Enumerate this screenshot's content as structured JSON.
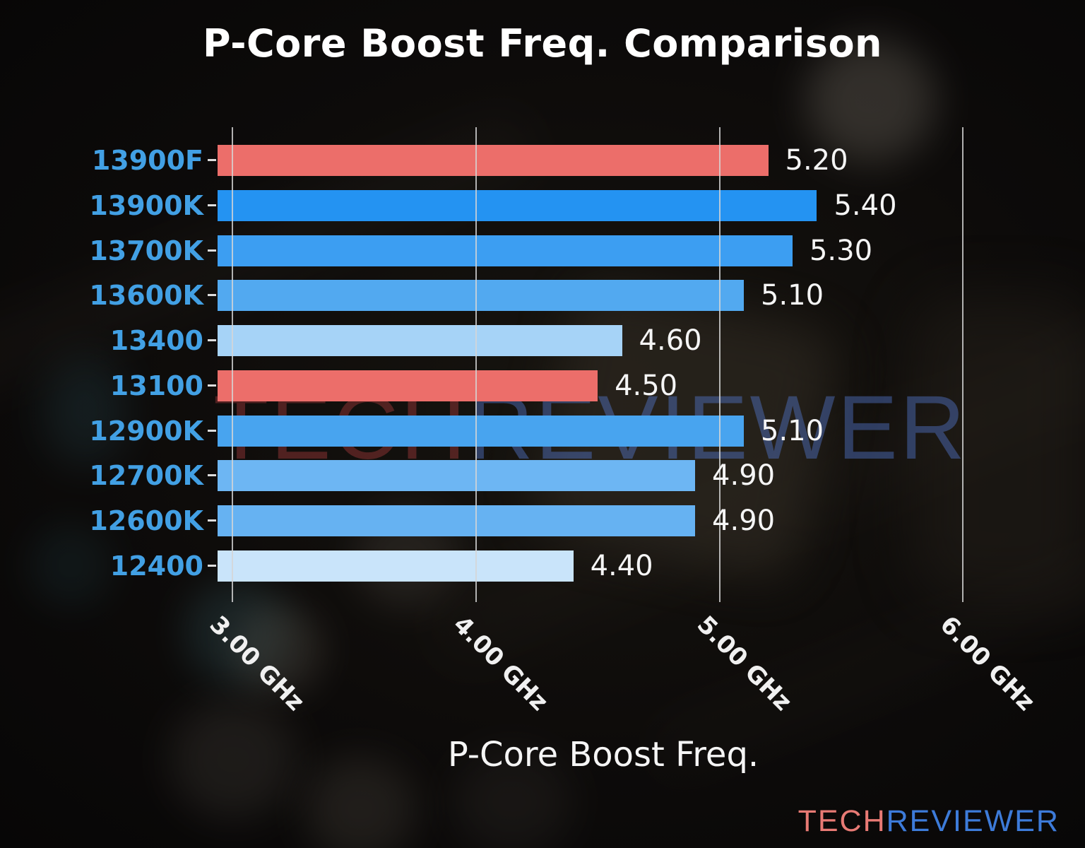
{
  "chart_data": {
    "type": "bar",
    "orientation": "horizontal",
    "title": "P-Core Boost Freq. Comparison",
    "xlabel": "P-Core Boost Freq.",
    "categories": [
      "13900F",
      "13900K",
      "13700K",
      "13600K",
      "13400",
      "13100",
      "12900K",
      "12700K",
      "12600K",
      "12400"
    ],
    "values": [
      5.2,
      5.4,
      5.3,
      5.1,
      4.6,
      4.5,
      5.1,
      4.9,
      4.9,
      4.4
    ],
    "value_labels": [
      "5.20",
      "5.40",
      "5.30",
      "5.10",
      "4.60",
      "4.50",
      "5.10",
      "4.90",
      "4.90",
      "4.40"
    ],
    "bar_colors": [
      "#EC6E6A",
      "#2493F2",
      "#3C9EF2",
      "#52A9F0",
      "#A6D3F7",
      "#EC6E6A",
      "#48A4EF",
      "#6DB6F3",
      "#66B2F2",
      "#C9E4FA"
    ],
    "category_label_color": "#42A0E4",
    "value_label_color": "#F5F5F5",
    "xlim": [
      2.94,
      6.106
    ],
    "xticks": [
      3,
      4,
      5,
      6
    ],
    "xtick_labels": [
      "3.00 GHz",
      "4.00 GHz",
      "5.00 GHz",
      "6.00 GHz"
    ],
    "grid": true,
    "gridline_color": "rgba(214,214,214,0.82)",
    "legend": false
  },
  "watermark": {
    "text_red": "TECH",
    "text_blue": "REVIEWER"
  },
  "logo": {
    "text_red": "TECH",
    "text_blue": "REVIEWER",
    "color_red": "#E87A74",
    "color_blue": "#3D7BD9"
  }
}
